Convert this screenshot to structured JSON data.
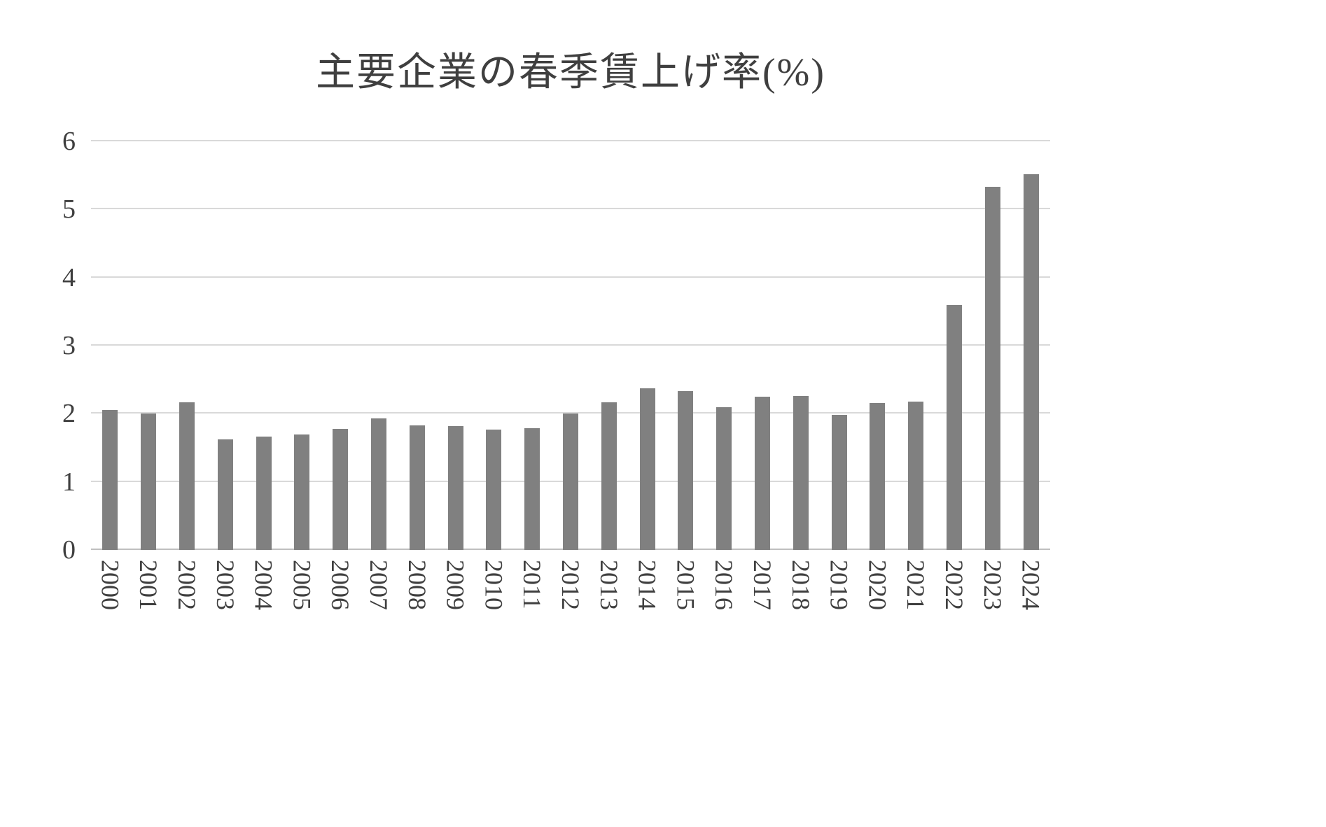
{
  "chart_data": {
    "type": "bar",
    "title": "主要企業の春季賃上げ率(%)",
    "xlabel": "",
    "ylabel": "",
    "categories": [
      "2000",
      "2001",
      "2002",
      "2003",
      "2004",
      "2005",
      "2006",
      "2007",
      "2008",
      "2009",
      "2010",
      "2011",
      "2012",
      "2013",
      "2014",
      "2015",
      "2016",
      "2017",
      "2018",
      "2019",
      "2020",
      "2021",
      "2022",
      "2023",
      "2024"
    ],
    "values": [
      2.06,
      2.0,
      2.17,
      1.62,
      1.66,
      1.7,
      1.78,
      1.93,
      1.83,
      1.82,
      1.77,
      1.79,
      2.0,
      2.17,
      2.37,
      2.33,
      2.1,
      2.25,
      2.26,
      1.98,
      2.16,
      2.18,
      3.6,
      5.33,
      5.52
    ],
    "ylim": [
      0,
      6
    ],
    "yticks": [
      0,
      1,
      2,
      3,
      4,
      5,
      6
    ],
    "grid": true,
    "legend": "none",
    "background": "#ffffff"
  },
  "colors": {
    "bar": "#808080",
    "gridline": "#d9d9d9",
    "axis_line": "#bfbfbf",
    "title_text": "#3f3f3f",
    "tick_text": "#3f3f3f"
  }
}
